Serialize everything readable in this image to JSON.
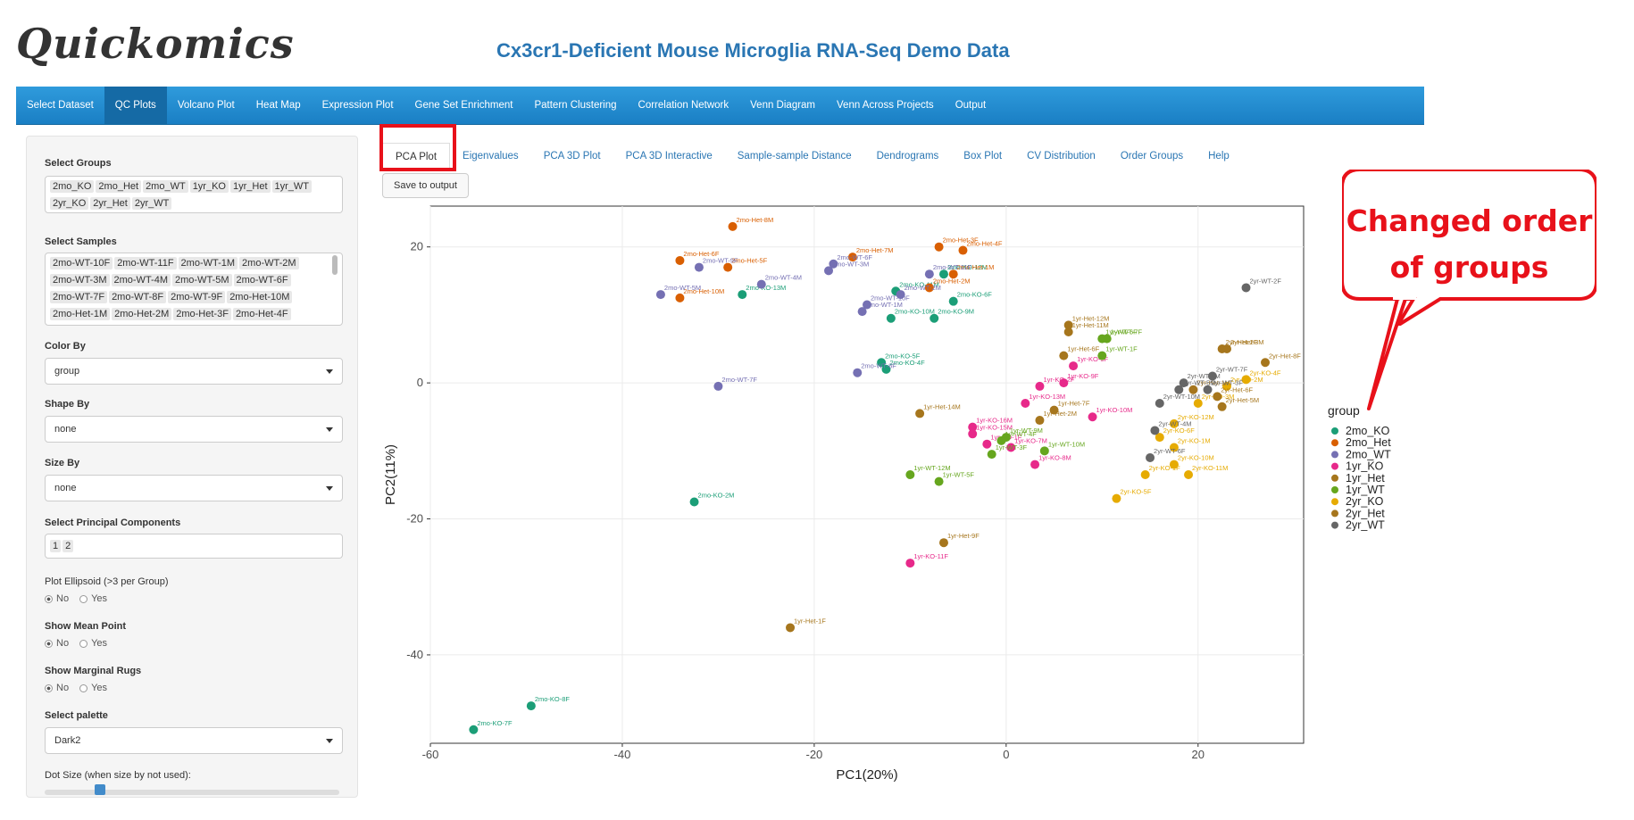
{
  "app": {
    "logo": "Quickomics",
    "title": "Cx3cr1-Deficient Mouse Microglia RNA-Seq Demo Data"
  },
  "nav": [
    "Select Dataset",
    "QC Plots",
    "Volcano Plot",
    "Heat Map",
    "Expression Plot",
    "Gene Set Enrichment",
    "Pattern Clustering",
    "Correlation Network",
    "Venn Diagram",
    "Venn Across Projects",
    "Output"
  ],
  "nav_active": 1,
  "sidebar": {
    "select_groups_label": "Select Groups",
    "groups": [
      "2mo_KO",
      "2mo_Het",
      "2mo_WT",
      "1yr_KO",
      "1yr_Het",
      "1yr_WT",
      "2yr_KO",
      "2yr_Het",
      "2yr_WT"
    ],
    "select_samples_label": "Select Samples",
    "samples": [
      "2mo-WT-10F",
      "2mo-WT-11F",
      "2mo-WT-1M",
      "2mo-WT-2M",
      "2mo-WT-3M",
      "2mo-WT-4M",
      "2mo-WT-5M",
      "2mo-WT-6F",
      "2mo-WT-7F",
      "2mo-WT-8F",
      "2mo-WT-9F",
      "2mo-Het-10M",
      "2mo-Het-1M",
      "2mo-Het-2M",
      "2mo-Het-3F",
      "2mo-Het-4F"
    ],
    "color_by_label": "Color By",
    "color_by_value": "group",
    "shape_by_label": "Shape By",
    "shape_by_value": "none",
    "size_by_label": "Size By",
    "size_by_value": "none",
    "pc_label": "Select Principal Components",
    "pcs": [
      "1",
      "2"
    ],
    "ellipsoid_label": "Plot Ellipsoid (>3 per Group)",
    "mean_label": "Show Mean Point",
    "rugs_label": "Show Marginal Rugs",
    "no": "No",
    "yes": "Yes",
    "palette_label": "Select palette",
    "palette_value": "Dark2",
    "dot_size_label": "Dot Size (when size by not used):"
  },
  "tabs": [
    "PCA Plot",
    "Eigenvalues",
    "PCA 3D Plot",
    "PCA 3D Interactive",
    "Sample-sample Distance",
    "Dendrograms",
    "Box Plot",
    "CV Distribution",
    "Order Groups",
    "Help"
  ],
  "active_tab": 0,
  "save_button": "Save to output",
  "callout": {
    "line1": "Changed order",
    "line2": "of groups",
    "color": "#e8111a"
  },
  "chart_data": {
    "type": "scatter",
    "xlabel": "PC1(20%)",
    "ylabel": "PC2(11%)",
    "xlim": [
      -60,
      31
    ],
    "ylim": [
      -53,
      26
    ],
    "xticks": [
      -60,
      -40,
      -20,
      0,
      20
    ],
    "yticks": [
      -40,
      -20,
      0,
      20
    ],
    "grid": true,
    "legend_title": "group",
    "legend_position": "right",
    "series": [
      {
        "name": "2mo_KO",
        "color": "#1b9e77",
        "points": [
          {
            "label": "2mo-KO-7F",
            "x": -55.5,
            "y": -51
          },
          {
            "label": "2mo-KO-8F",
            "x": -49.5,
            "y": -47.5
          },
          {
            "label": "2mo-KO-2M",
            "x": -32.5,
            "y": -17.5
          },
          {
            "label": "2mo-KO-5F",
            "x": -13,
            "y": 3
          },
          {
            "label": "2mo-KO-4F",
            "x": -12.5,
            "y": 2
          },
          {
            "label": "2mo-KO-10M",
            "x": -12,
            "y": 9.5
          },
          {
            "label": "2mo-KO-9M",
            "x": -7.5,
            "y": 9.5
          },
          {
            "label": "2mo-KO-6F",
            "x": -5.5,
            "y": 12
          },
          {
            "label": "2mo-KO-11M",
            "x": -11.5,
            "y": 13.5
          },
          {
            "label": "2mo-KO-12M",
            "x": -6.5,
            "y": 16
          },
          {
            "label": "2mo-KO-13M",
            "x": -27.5,
            "y": 13
          }
        ]
      },
      {
        "name": "2mo_Het",
        "color": "#d95f02",
        "points": [
          {
            "label": "2mo-Het-8M",
            "x": -28.5,
            "y": 23
          },
          {
            "label": "2mo-Het-5F",
            "x": -29,
            "y": 17
          },
          {
            "label": "2mo-Het-6F",
            "x": -34,
            "y": 18
          },
          {
            "label": "2mo-Het-10M",
            "x": -34,
            "y": 12.5
          },
          {
            "label": "2mo-Het-7M",
            "x": -16,
            "y": 18.5
          },
          {
            "label": "2mo-Het-3F",
            "x": -7,
            "y": 20
          },
          {
            "label": "2mo-Het-4F",
            "x": -4.5,
            "y": 19.5
          },
          {
            "label": "2mo-Het-1M",
            "x": -5.5,
            "y": 16
          },
          {
            "label": "2mo-Het-2M",
            "x": -8,
            "y": 14
          }
        ]
      },
      {
        "name": "2mo_WT",
        "color": "#7570b3",
        "points": [
          {
            "label": "2mo-WT-5M",
            "x": -36,
            "y": 13
          },
          {
            "label": "2mo-WT-9F",
            "x": -32,
            "y": 17
          },
          {
            "label": "2mo-WT-4M",
            "x": -25.5,
            "y": 14.5
          },
          {
            "label": "2mo-WT-6F",
            "x": -18,
            "y": 17.5
          },
          {
            "label": "2mo-WT-3M",
            "x": -18.5,
            "y": 16.5
          },
          {
            "label": "2mo-WT-10F",
            "x": -14.5,
            "y": 11.5
          },
          {
            "label": "2mo-WT-1M",
            "x": -15,
            "y": 10.5
          },
          {
            "label": "2mo-WT-11F",
            "x": -8,
            "y": 16
          },
          {
            "label": "2mo-WT-2M",
            "x": -11,
            "y": 13
          },
          {
            "label": "2mo-WT-7F",
            "x": -30,
            "y": -0.5
          },
          {
            "label": "2mo-WT-8F",
            "x": -15.5,
            "y": 1.5
          }
        ]
      },
      {
        "name": "1yr_KO",
        "color": "#e7298a",
        "points": [
          {
            "label": "1yr-KO-11F",
            "x": -10,
            "y": -26.5
          },
          {
            "label": "1yr-KO-16M",
            "x": -3.5,
            "y": -6.5
          },
          {
            "label": "1yr-KO-15M",
            "x": -3.5,
            "y": -7.5
          },
          {
            "label": "1yr-KO-1F",
            "x": -2,
            "y": -9
          },
          {
            "label": "1yr-KO-8M",
            "x": 3,
            "y": -12
          },
          {
            "label": "1yr-KO-7M",
            "x": 0.5,
            "y": -9.5
          },
          {
            "label": "1yr-KO-13M",
            "x": 2,
            "y": -3
          },
          {
            "label": "1yr-KO-9F",
            "x": 6,
            "y": 0
          },
          {
            "label": "1yr-KO-2F",
            "x": 3.5,
            "y": -0.5
          },
          {
            "label": "1yr-KO-10M",
            "x": 9,
            "y": -5
          },
          {
            "label": "1yr-KO-3F",
            "x": 7,
            "y": 2.5
          }
        ]
      },
      {
        "name": "1yr_Het",
        "color": "#a6761d",
        "points": [
          {
            "label": "1yr-Het-9F",
            "x": -6.5,
            "y": -23.5
          },
          {
            "label": "1yr-Het-1F",
            "x": -22.5,
            "y": -36
          },
          {
            "label": "1yr-Het-14M",
            "x": -9,
            "y": -4.5
          },
          {
            "label": "1yr-Het-12M",
            "x": 6.5,
            "y": 8.5
          },
          {
            "label": "1yr-Het-11M",
            "x": 6.5,
            "y": 7.5
          },
          {
            "label": "1yr-Het-6F",
            "x": 6,
            "y": 4
          },
          {
            "label": "1yr-Het-7F",
            "x": 5,
            "y": -4
          },
          {
            "label": "1yr-Het-2M",
            "x": 3.5,
            "y": -5.5
          }
        ]
      },
      {
        "name": "1yr_WT",
        "color": "#66a61e",
        "points": [
          {
            "label": "1yr-WT-12M",
            "x": -10,
            "y": -13.5
          },
          {
            "label": "1yr-WT-5F",
            "x": -7,
            "y": -14.5
          },
          {
            "label": "1yr-WT-3F",
            "x": -1.5,
            "y": -10.5
          },
          {
            "label": "1yr-WT-4F",
            "x": -0.5,
            "y": -8.5
          },
          {
            "label": "1yr-WT-9M",
            "x": 0,
            "y": -8
          },
          {
            "label": "1yr-WT-10M",
            "x": 4,
            "y": -10
          },
          {
            "label": "1yr-WT-6F",
            "x": 10,
            "y": 6.5
          },
          {
            "label": "1yr-WT-7F",
            "x": 10.5,
            "y": 6.5
          },
          {
            "label": "1yr-WT-1F",
            "x": 10,
            "y": 4
          }
        ]
      },
      {
        "name": "2yr_KO",
        "color": "#e6ab02",
        "points": [
          {
            "label": "2yr-KO-5F",
            "x": 11.5,
            "y": -17
          },
          {
            "label": "2yr-KO-1F",
            "x": 14.5,
            "y": -13.5
          },
          {
            "label": "2yr-KO-10M",
            "x": 17.5,
            "y": -12
          },
          {
            "label": "2yr-KO-11M",
            "x": 19,
            "y": -13.5
          },
          {
            "label": "2yr-KO-1M",
            "x": 17.5,
            "y": -9.5
          },
          {
            "label": "2yr-KO-6F",
            "x": 16,
            "y": -8
          },
          {
            "label": "2yr-KO-12M",
            "x": 17.5,
            "y": -6
          },
          {
            "label": "2yr-KO-3M",
            "x": 20,
            "y": -3
          },
          {
            "label": "2yr-KO-4F",
            "x": 25,
            "y": 0.5
          },
          {
            "label": "2yr-KO-2M",
            "x": 23,
            "y": -0.5
          }
        ]
      },
      {
        "name": "2yr_Het",
        "color": "#a6761d",
        "points": [
          {
            "label": "2yr-Het-2F",
            "x": 22.5,
            "y": 5
          },
          {
            "label": "2yr-Het-3M",
            "x": 23,
            "y": 5
          },
          {
            "label": "2yr-Het-8F",
            "x": 27,
            "y": 3
          },
          {
            "label": "2yr-Het-6F",
            "x": 22,
            "y": -2
          },
          {
            "label": "2yr-Het-5M",
            "x": 22.5,
            "y": -3.5
          },
          {
            "label": "2yr-Het-1M",
            "x": 19.5,
            "y": -1
          }
        ]
      },
      {
        "name": "2yr_WT",
        "color": "#666666",
        "points": [
          {
            "label": "2yr-WT-2F",
            "x": 25,
            "y": 14
          },
          {
            "label": "2yr-WT-6F",
            "x": 15,
            "y": -11
          },
          {
            "label": "2yr-WT-4M",
            "x": 15.5,
            "y": -7
          },
          {
            "label": "2yr-WT-10M",
            "x": 16,
            "y": -3
          },
          {
            "label": "2yr-WT-5M",
            "x": 18,
            "y": -1
          },
          {
            "label": "2yr-WT-3F",
            "x": 21,
            "y": -1
          },
          {
            "label": "2yr-WT-7F",
            "x": 21.5,
            "y": 1
          },
          {
            "label": "2yr-WT-1M",
            "x": 18.5,
            "y": 0
          }
        ]
      }
    ]
  }
}
